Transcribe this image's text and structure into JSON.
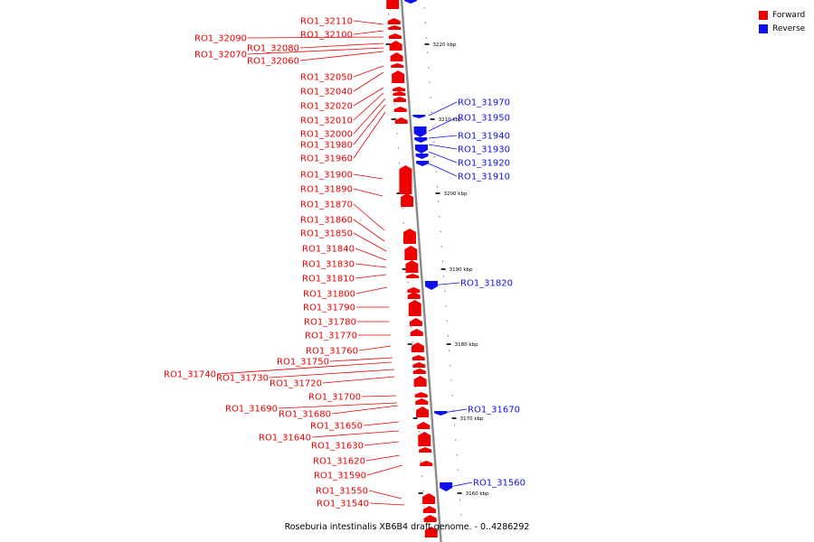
{
  "legend": [
    {
      "label": "Forward",
      "color": "#ee0000"
    },
    {
      "label": "Reverse",
      "color": "#1010ee"
    }
  ],
  "caption": "Roseburia intestinalis XB6B4 draft genome. - 0..4286292",
  "colors": {
    "forward": "#ee0000",
    "reverse": "#1010ee",
    "backbone": "#8a8a8a"
  },
  "scale_ticks": [
    "3220 kbp",
    "3210 kbp",
    "3200 kbp",
    "3190 kbp",
    "3180 kbp",
    "3170 kbp",
    "3160 kbp"
  ],
  "forward_genes": [
    "RO1_32110",
    "RO1_32100",
    "RO1_32090",
    "RO1_32080",
    "RO1_32070",
    "RO1_32060",
    "RO1_32050",
    "RO1_32040",
    "RO1_32020",
    "RO1_32010",
    "RO1_32000",
    "RO1_31980",
    "RO1_31960",
    "RO1_31900",
    "RO1_31890",
    "RO1_31870",
    "RO1_31860",
    "RO1_31850",
    "RO1_31840",
    "RO1_31830",
    "RO1_31810",
    "RO1_31800",
    "RO1_31790",
    "RO1_31780",
    "RO1_31770",
    "RO1_31760",
    "RO1_31750",
    "RO1_31740",
    "RO1_31730",
    "RO1_31720",
    "RO1_31700",
    "RO1_31690",
    "RO1_31680",
    "RO1_31650",
    "RO1_31640",
    "RO1_31630",
    "RO1_31620",
    "RO1_31590",
    "RO1_31550",
    "RO1_31540"
  ],
  "reverse_genes": [
    "RO1_31970",
    "RO1_31950",
    "RO1_31940",
    "RO1_31930",
    "RO1_31920",
    "RO1_31910",
    "RO1_31820",
    "RO1_31670",
    "RO1_31560"
  ]
}
